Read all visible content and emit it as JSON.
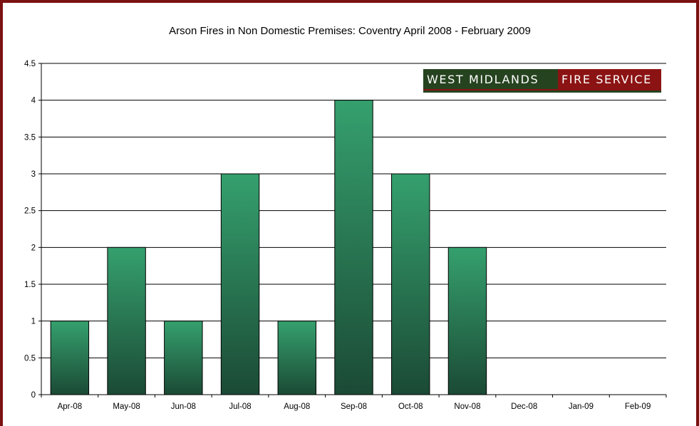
{
  "chart_data": {
    "type": "bar",
    "title": "Arson Fires in Non Domestic Premises: Coventry April 2008 - February 2009",
    "xlabel": "",
    "ylabel": "",
    "categories": [
      "Apr-08",
      "May-08",
      "Jun-08",
      "Jul-08",
      "Aug-08",
      "Sep-08",
      "Oct-08",
      "Nov-08",
      "Dec-08",
      "Jan-09",
      "Feb-09"
    ],
    "values": [
      1,
      2,
      1,
      3,
      1,
      4,
      3,
      2,
      0,
      0,
      0
    ],
    "ylim": [
      0,
      4.5
    ],
    "yticks": [
      "0",
      "0.5",
      "1",
      "1.5",
      "2",
      "2.5",
      "3",
      "3.5",
      "4",
      "4.5"
    ],
    "grid": "horizontal",
    "legend": "none",
    "bar_color_top": "#35a06e",
    "bar_color_bottom": "#1b4a35"
  },
  "logo": {
    "part1": "WEST MIDLANDS",
    "part2": "FIRE SERVICE",
    "color1": "#26431f",
    "color2": "#8c1313"
  },
  "frame_color": "#7a1212"
}
